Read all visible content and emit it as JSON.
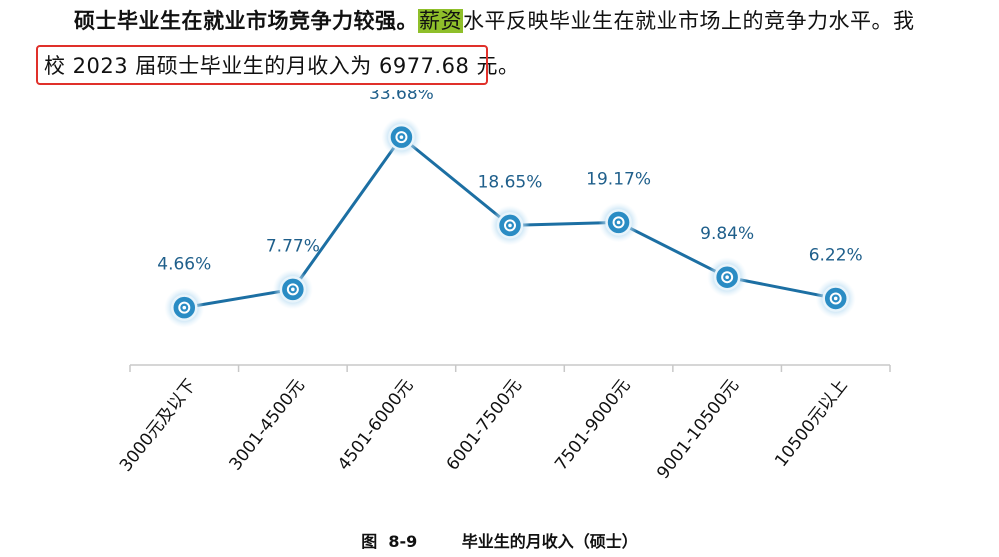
{
  "text": {
    "line1_bold": "硕士毕业生在就业市场竞争力较强。",
    "line1_highlight": "薪资",
    "line1_rest": "水平反映毕业生在就业市场上的竞争力水平。我",
    "line2": "校 2023 届硕士毕业生的月收入为 6977.68 元。"
  },
  "caption": "图  8-9        毕业生的月收入（硕士）",
  "colors": {
    "line": "#1c6fa3",
    "marker": "#2a8cc4",
    "label": "#1f5f8b",
    "highlight_box": "#e0302a",
    "highlight_text": "#8fbf2a"
  },
  "chart_data": {
    "type": "line",
    "title": "",
    "xlabel": "",
    "ylabel": "",
    "categories": [
      "3000元及以下",
      "3001-4500元",
      "4501-6000元",
      "6001-7500元",
      "7501-9000元",
      "9001-10500元",
      "10500元以上"
    ],
    "series": [
      {
        "values": [
          4.66,
          7.77,
          33.68,
          18.65,
          19.17,
          9.84,
          6.22
        ],
        "labels": [
          "4.66%",
          "7.77%",
          "33.68%",
          "18.65%",
          "19.17%",
          "9.84%",
          "6.22%"
        ]
      }
    ],
    "ylim": [
      0,
      40
    ],
    "grid": false,
    "legend": "none"
  }
}
